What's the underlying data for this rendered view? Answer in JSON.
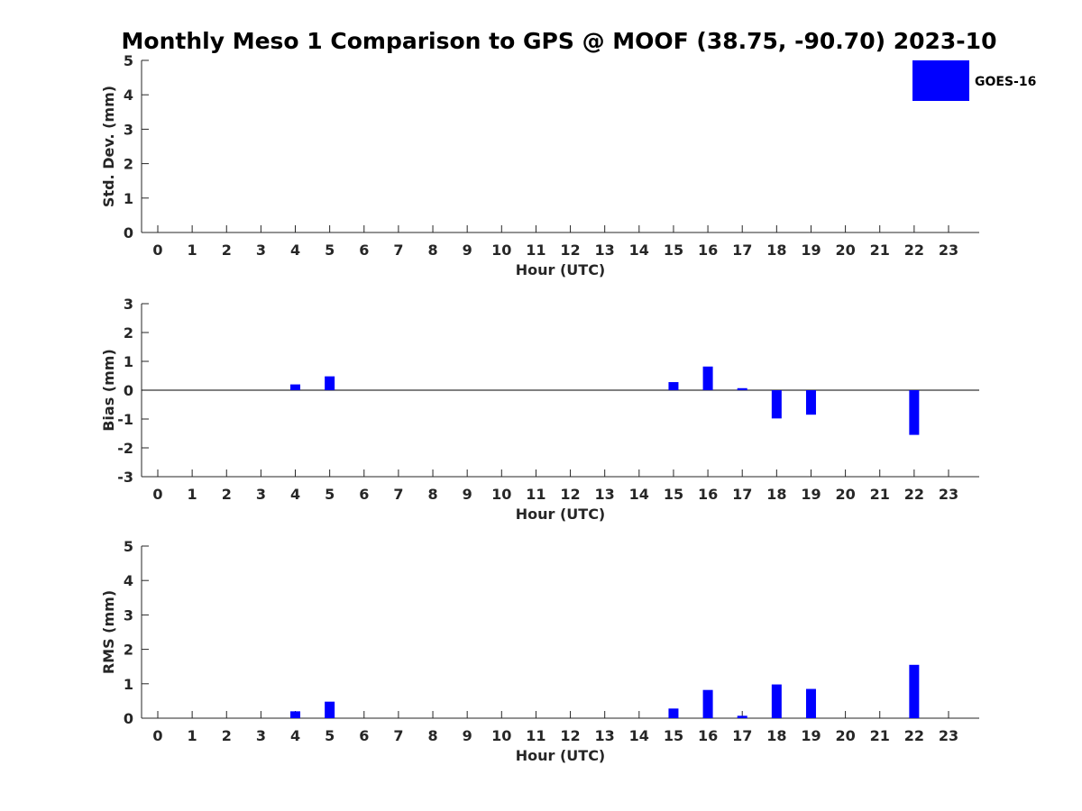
{
  "chart_data": {
    "type": "bar",
    "title": "Monthly Meso 1 Comparison to GPS @ MOOF (38.75, -90.70) 2023-10",
    "legend": {
      "entries": [
        "GOES-16"
      ],
      "position": "top-right"
    },
    "series_color": "#0000ff",
    "categories": [
      "0",
      "1",
      "2",
      "3",
      "4",
      "5",
      "6",
      "7",
      "8",
      "9",
      "10",
      "11",
      "12",
      "13",
      "14",
      "15",
      "16",
      "17",
      "18",
      "19",
      "20",
      "21",
      "22",
      "23"
    ],
    "panels": [
      {
        "ylabel": "Std. Dev. (mm)",
        "xlabel": "Hour (UTC)",
        "ylim": [
          0,
          5
        ],
        "yticks": [
          "0",
          "1",
          "2",
          "3",
          "4",
          "5"
        ],
        "series": [
          {
            "name": "GOES-16",
            "values": [
              null,
              null,
              null,
              null,
              0,
              0,
              null,
              null,
              null,
              null,
              null,
              null,
              null,
              null,
              null,
              0,
              0,
              0,
              0,
              0,
              null,
              null,
              0,
              null
            ]
          }
        ]
      },
      {
        "ylabel": "Bias (mm)",
        "xlabel": "Hour (UTC)",
        "ylim": [
          -3,
          3
        ],
        "yticks": [
          "-3",
          "-2",
          "-1",
          "0",
          "1",
          "2",
          "3"
        ],
        "zero_line": true,
        "series": [
          {
            "name": "GOES-16",
            "values": [
              null,
              null,
              null,
              null,
              0.2,
              0.48,
              null,
              null,
              null,
              null,
              null,
              null,
              null,
              null,
              null,
              0.28,
              0.82,
              0.07,
              -0.98,
              -0.85,
              null,
              null,
              -1.55,
              null
            ]
          }
        ]
      },
      {
        "ylabel": "RMS (mm)",
        "xlabel": "Hour (UTC)",
        "ylim": [
          0,
          5
        ],
        "yticks": [
          "0",
          "1",
          "2",
          "3",
          "4",
          "5"
        ],
        "series": [
          {
            "name": "GOES-16",
            "values": [
              null,
              null,
              null,
              null,
              0.2,
              0.48,
              null,
              null,
              null,
              null,
              null,
              null,
              null,
              null,
              null,
              0.28,
              0.82,
              0.07,
              0.98,
              0.85,
              null,
              null,
              1.55,
              null
            ]
          }
        ]
      }
    ]
  }
}
